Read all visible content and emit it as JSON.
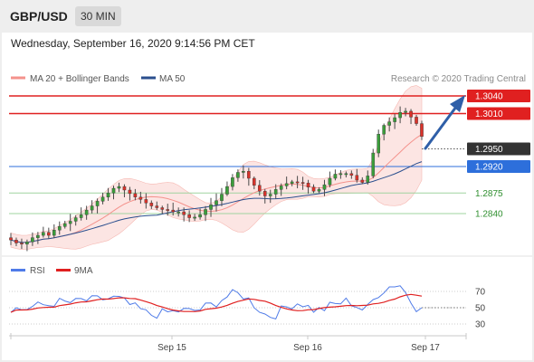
{
  "header": {
    "pair": "GBP/USD",
    "timeframe": "30 MIN"
  },
  "datetime": "Wednesday, September 16, 2020 9:14:56 PM CET",
  "chart_data": {
    "type": "candlestick",
    "price_axis": {
      "min": 1.276,
      "max": 1.306
    },
    "legend": [
      {
        "label": "MA 20 + Bollinger Bands",
        "color": "#f4928c"
      },
      {
        "label": "MA 50",
        "color": "#2b4f8e"
      }
    ],
    "source": "Research © 2020 Trading Central",
    "levels": [
      {
        "label": "1.3040",
        "value": 1.304,
        "role": "resistance",
        "color": "#e02020"
      },
      {
        "label": "1.3010",
        "value": 1.301,
        "role": "resistance",
        "color": "#e02020"
      },
      {
        "label": "1.2950",
        "value": 1.295,
        "role": "current",
        "color": "#333333"
      },
      {
        "label": "1.2920",
        "value": 1.292,
        "role": "pivot",
        "color": "#2d6fdb"
      },
      {
        "label": "1.2875",
        "value": 1.2875,
        "role": "support",
        "color": "#2f8f2f"
      },
      {
        "label": "1.2840",
        "value": 1.284,
        "role": "support",
        "color": "#2f8f2f"
      }
    ],
    "candles_close": [
      1.2795,
      1.279,
      1.2788,
      1.2792,
      1.2799,
      1.2803,
      1.2808,
      1.2803,
      1.2812,
      1.2818,
      1.2823,
      1.2827,
      1.2833,
      1.2838,
      1.2846,
      1.2853,
      1.2861,
      1.2868,
      1.2875,
      1.2883,
      1.2886,
      1.288,
      1.2874,
      1.2868,
      1.2864,
      1.2858,
      1.2853,
      1.285,
      1.2847,
      1.2846,
      1.2843,
      1.2843,
      1.2838,
      1.2833,
      1.2834,
      1.2838,
      1.2847,
      1.2855,
      1.2862,
      1.2873,
      1.2886,
      1.2901,
      1.291,
      1.2912,
      1.29,
      1.2888,
      1.2878,
      1.287,
      1.2873,
      1.2881,
      1.2887,
      1.2891,
      1.2894,
      1.2893,
      1.2892,
      1.2885,
      1.2878,
      1.2881,
      1.2889,
      1.29,
      1.2907,
      1.2908,
      1.2908,
      1.2905,
      1.2897,
      1.2893,
      1.2904,
      1.2943,
      1.2975,
      1.299,
      1.2996,
      1.3003,
      1.3012,
      1.3014,
      1.3004,
      1.2993,
      1.2971
    ],
    "rsi_panel": {
      "legend": [
        {
          "label": "RSI",
          "color": "#4f7be8"
        },
        {
          "label": "9MA",
          "color": "#e02020"
        }
      ],
      "ticks": [
        "70",
        "50",
        "30"
      ],
      "range": [
        20,
        90
      ],
      "last": 50
    },
    "x_labels": [
      "Sep 15",
      "Sep 16",
      "Sep 17"
    ]
  }
}
